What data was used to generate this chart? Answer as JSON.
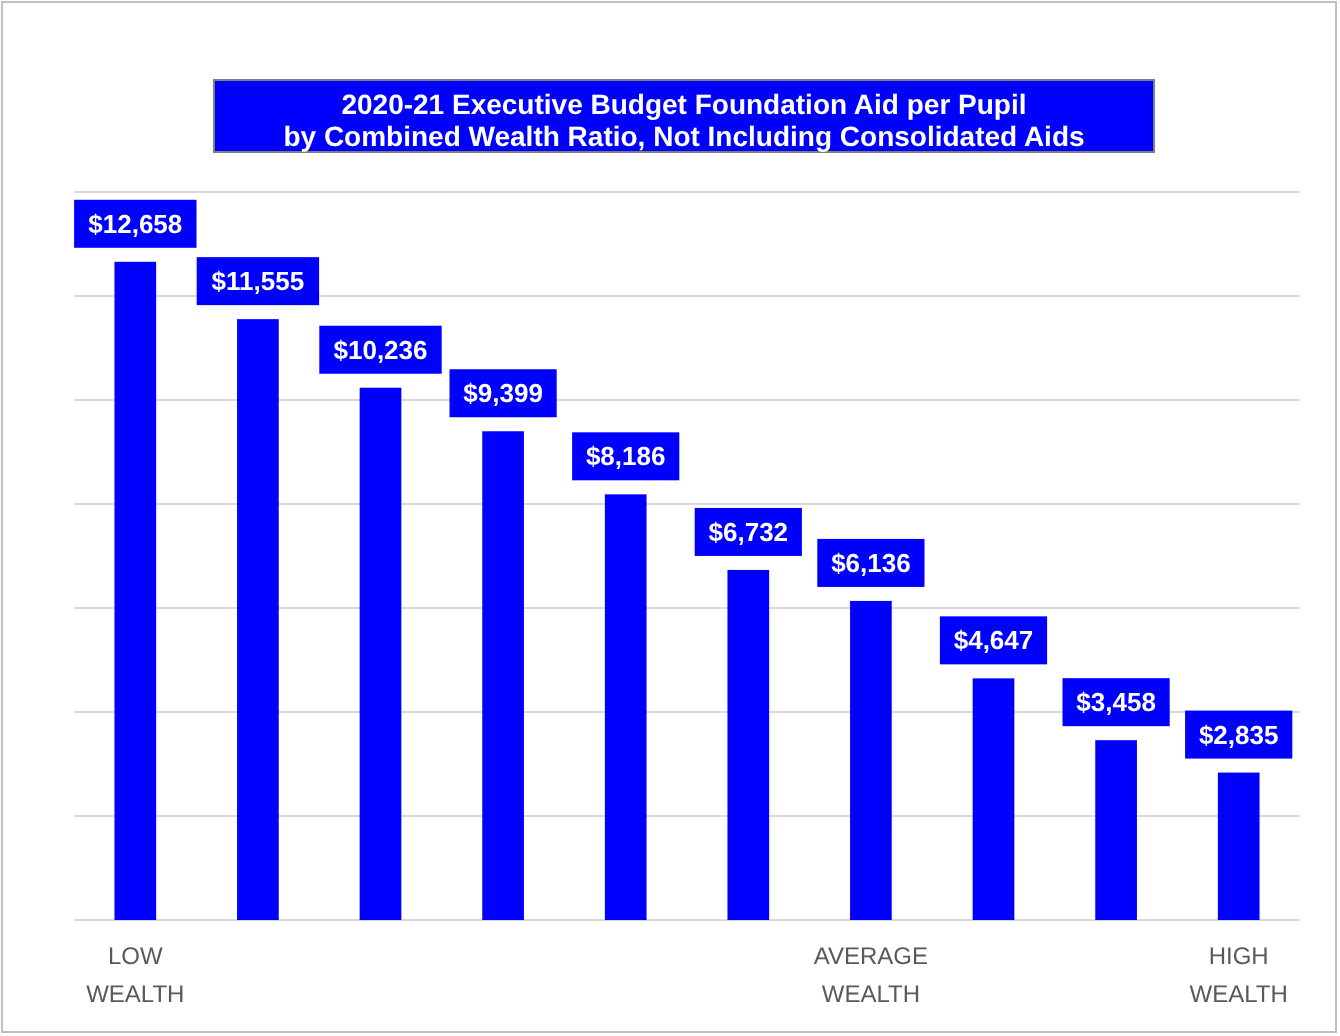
{
  "chart_data": {
    "type": "bar",
    "title": "2020-21 Executive Budget Foundation Aid per Pupil\nby Combined Wealth Ratio, Not Including Consolidated Aids",
    "categories": [
      "LOW WEALTH",
      null,
      null,
      null,
      null,
      null,
      "AVERAGE WEALTH",
      null,
      null,
      "HIGH WEALTH"
    ],
    "values": [
      12658,
      11555,
      10236,
      9399,
      8186,
      6732,
      6136,
      4647,
      3458,
      2835
    ],
    "value_labels": [
      "$12,658",
      "$11,555",
      "$10,236",
      "$9,399",
      "$8,186",
      "$6,732",
      "$6,136",
      "$4,647",
      "$3,458",
      "$2,835"
    ],
    "color": "#0000ff",
    "ylim": [
      0,
      14000
    ],
    "yticks": [
      {
        "value": 0,
        "label": null
      },
      {
        "value": 2000,
        "label": null
      },
      {
        "value": 4000,
        "label": null
      },
      {
        "value": 6000,
        "label": null
      },
      {
        "value": 8000,
        "label": null
      },
      {
        "value": 10000,
        "label": null
      },
      {
        "value": 12000,
        "label": null
      },
      {
        "value": 14000,
        "label": null
      }
    ],
    "tick_labels": "x",
    "grid": "y"
  }
}
